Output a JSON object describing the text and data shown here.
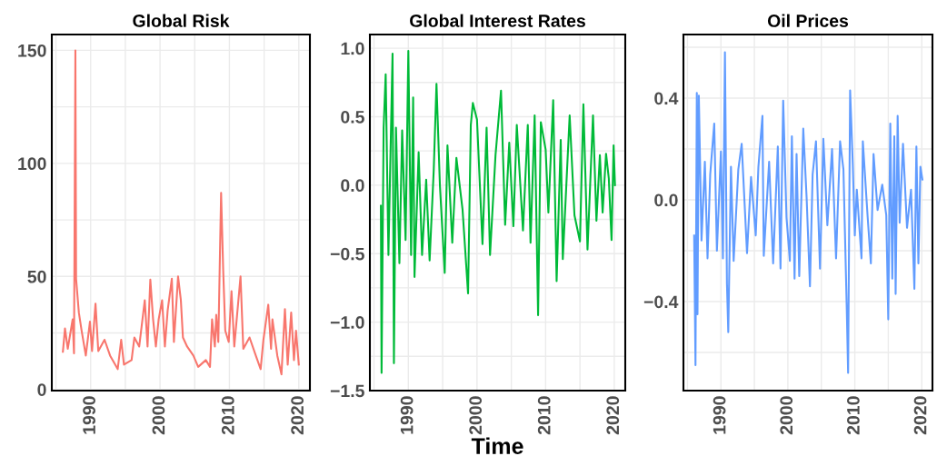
{
  "chart_data": [
    {
      "type": "line",
      "title": "Global Risk",
      "xlim": [
        1984.4,
        2021.6
      ],
      "ylim": [
        -0.5,
        157
      ],
      "xticks": [
        {
          "value": 1985,
          "label": null
        },
        1990,
        {
          "value": 1995,
          "label": null
        },
        2000,
        {
          "value": 2005,
          "label": null
        },
        2010,
        {
          "value": 2015,
          "label": null
        },
        2020
      ],
      "yticks": [
        0,
        {
          "value": 25,
          "label": null
        },
        50,
        {
          "value": 75,
          "label": null
        },
        100,
        {
          "value": 125,
          "label": null
        },
        150
      ],
      "grid": true,
      "series": [
        {
          "color": "#f8766d",
          "x": [
            1986.0,
            1986.3,
            1986.7,
            1987.4,
            1987.6,
            1987.8,
            1987.9,
            1988.3,
            1988.7,
            1989.3,
            1989.9,
            1990.2,
            1990.7,
            1991.1,
            1992.0,
            1992.8,
            1993.9,
            1994.4,
            1994.8,
            1995.9,
            1996.3,
            1997.0,
            1997.8,
            1998.2,
            1998.6,
            1999.0,
            1999.4,
            1999.8,
            2000.3,
            2000.7,
            2001.1,
            2001.7,
            2002.0,
            2002.6,
            2003.0,
            2003.3,
            2003.9,
            2004.8,
            2005.5,
            2006.6,
            2007.2,
            2007.5,
            2007.9,
            2008.1,
            2008.4,
            2008.8,
            2009.1,
            2009.4,
            2009.9,
            2010.3,
            2010.7,
            2011.6,
            2012.0,
            2012.9,
            2013.8,
            2014.5,
            2014.9,
            2015.6,
            2016.0,
            2016.2,
            2016.9,
            2017.5,
            2018.0,
            2018.4,
            2018.9,
            2019.3,
            2019.6,
            2020.0
          ],
          "values": [
            16.7,
            27,
            18,
            31,
            16,
            150,
            49,
            34,
            26,
            15,
            30,
            17,
            38,
            17,
            22,
            15,
            9,
            22,
            11,
            13,
            23,
            19,
            39.5,
            19,
            48.6,
            31,
            19,
            31,
            39.5,
            19,
            35,
            49,
            21,
            50,
            39.5,
            23,
            19,
            15,
            10,
            13,
            10,
            31,
            19,
            33,
            21,
            87,
            53,
            26,
            21,
            43.5,
            19,
            50,
            18,
            23,
            15,
            9,
            22,
            37.5,
            18,
            31,
            15,
            6.7,
            35.5,
            11,
            34,
            13,
            26,
            11
          ]
        }
      ]
    },
    {
      "type": "line",
      "title": "Global Interest Rates",
      "xlabel": "Time",
      "xlim": [
        1984.4,
        2021.6
      ],
      "ylim": [
        -1.5,
        1.1
      ],
      "xticks": [
        {
          "value": 1985,
          "label": null
        },
        1990,
        {
          "value": 1995,
          "label": null
        },
        2000,
        {
          "value": 2005,
          "label": null
        },
        2010,
        {
          "value": 2015,
          "label": null
        },
        2020
      ],
      "yticks": [
        {
          "value": -1.5,
          "label": "−1.5"
        },
        {
          "value": -1.25,
          "label": null
        },
        {
          "value": -1.0,
          "label": "−1.0"
        },
        {
          "value": -0.75,
          "label": null
        },
        {
          "value": -0.5,
          "label": "−0.5"
        },
        {
          "value": -0.25,
          "label": null
        },
        {
          "value": 0,
          "label": "0.0"
        },
        {
          "value": 0.25,
          "label": null
        },
        {
          "value": 0.5,
          "label": "0.5"
        },
        {
          "value": 0.75,
          "label": null
        },
        {
          "value": 1.0,
          "label": "1.0"
        }
      ],
      "grid": true,
      "series": [
        {
          "color": "#00ba38",
          "x": [
            1986.0,
            1986.1,
            1986.4,
            1986.7,
            1987.1,
            1987.7,
            1987.9,
            1988.2,
            1988.7,
            1989.1,
            1989.6,
            1990.0,
            1990.4,
            1990.7,
            1990.9,
            1991.5,
            1992.0,
            1992.6,
            1993.1,
            1993.7,
            1994.1,
            1994.6,
            1995.3,
            1995.7,
            1996.4,
            1997.0,
            1997.9,
            1998.7,
            1999.1,
            1999.4,
            2000.0,
            2000.8,
            2001.4,
            2001.9,
            2002.7,
            2003.5,
            2004.1,
            2004.7,
            2005.3,
            2005.8,
            2006.7,
            2007.4,
            2007.8,
            2008.4,
            2008.9,
            2009.3,
            2010.0,
            2010.4,
            2011.1,
            2011.6,
            2012.2,
            2012.5,
            2013.5,
            2014.2,
            2015.0,
            2015.5,
            2016.1,
            2016.9,
            2017.4,
            2017.9,
            2018.3,
            2018.8,
            2019.2,
            2019.6,
            2019.9,
            2020.1
          ],
          "values": [
            -0.15,
            -1.37,
            0.42,
            0.81,
            -0.51,
            0.96,
            -1.3,
            0.42,
            -0.57,
            0.4,
            -0.4,
            0.98,
            -0.51,
            0.64,
            -0.67,
            0.24,
            -0.51,
            0.04,
            -0.55,
            0.11,
            0.74,
            0.0,
            -0.64,
            0.29,
            -0.42,
            0.2,
            -0.18,
            -0.79,
            0.44,
            0.6,
            0.48,
            -0.43,
            0.42,
            -0.51,
            0.22,
            0.69,
            -0.29,
            0.31,
            -0.3,
            0.44,
            -0.33,
            0.44,
            -0.42,
            0.51,
            -0.95,
            0.46,
            0.26,
            -0.2,
            0.62,
            -0.7,
            0.33,
            -0.54,
            0.51,
            -0.22,
            -0.41,
            0.59,
            -0.47,
            0.51,
            -0.26,
            0.22,
            -0.2,
            0.23,
            0.05,
            -0.4,
            0.29,
            0.0
          ]
        }
      ]
    },
    {
      "type": "line",
      "title": "Oil Prices",
      "xlim": [
        1984.4,
        2021.6
      ],
      "ylim": [
        -0.75,
        0.65
      ],
      "xticks": [
        {
          "value": 1985,
          "label": null
        },
        1990,
        {
          "value": 1995,
          "label": null
        },
        2000,
        {
          "value": 2005,
          "label": null
        },
        2010,
        {
          "value": 2015,
          "label": null
        },
        2020
      ],
      "yticks": [
        {
          "value": -0.6,
          "label": null
        },
        {
          "value": -0.4,
          "label": "−0.4"
        },
        {
          "value": -0.2,
          "label": null
        },
        {
          "value": 0,
          "label": "0.0"
        },
        {
          "value": 0.2,
          "label": null
        },
        {
          "value": 0.4,
          "label": "0.4"
        },
        {
          "value": 0.6,
          "label": null
        }
      ],
      "grid": true,
      "series": [
        {
          "color": "#619cff",
          "x": [
            1986.0,
            1986.2,
            1986.4,
            1986.5,
            1986.7,
            1987.1,
            1987.6,
            1988.0,
            1988.4,
            1989.0,
            1989.4,
            1990.0,
            1990.3,
            1990.6,
            1990.9,
            1991.1,
            1991.5,
            1991.9,
            1992.6,
            1993.1,
            1993.9,
            1994.5,
            1995.2,
            1995.6,
            1996.2,
            1996.4,
            1997.2,
            1997.8,
            1998.5,
            1998.9,
            1999.3,
            1999.8,
            2000.3,
            2000.6,
            2001.0,
            2001.3,
            2001.7,
            2002.3,
            2002.8,
            2003.3,
            2003.7,
            2004.2,
            2004.8,
            2005.3,
            2005.9,
            2006.6,
            2007.2,
            2007.8,
            2008.3,
            2008.8,
            2009.0,
            2009.3,
            2009.7,
            2010.0,
            2010.3,
            2011.0,
            2011.2,
            2011.9,
            2012.4,
            2012.8,
            2013.4,
            2014.1,
            2014.7,
            2015.0,
            2015.3,
            2015.6,
            2015.9,
            2016.1,
            2016.4,
            2016.7,
            2017.2,
            2017.8,
            2018.4,
            2018.9,
            2019.2,
            2019.5,
            2019.8,
            2020.1
          ],
          "values": [
            -0.14,
            -0.65,
            0.42,
            -0.45,
            0.41,
            -0.16,
            0.15,
            -0.23,
            0.1,
            0.3,
            -0.2,
            0.19,
            -0.23,
            0.58,
            -0.33,
            -0.52,
            0.13,
            -0.24,
            0.12,
            0.22,
            -0.21,
            0.09,
            -0.14,
            0.13,
            0.33,
            -0.22,
            0.15,
            -0.25,
            0.21,
            -0.27,
            0.39,
            -0.07,
            -0.24,
            0.25,
            -0.31,
            0.18,
            -0.3,
            0.28,
            0.01,
            -0.34,
            0.1,
            0.23,
            -0.27,
            0.24,
            -0.1,
            0.2,
            -0.23,
            0.23,
            0.12,
            -0.43,
            -0.68,
            0.43,
            0.14,
            -0.14,
            0.04,
            -0.23,
            0.23,
            -0.06,
            -0.25,
            0.18,
            -0.04,
            0.06,
            -0.06,
            -0.47,
            0.3,
            -0.31,
            0.25,
            -0.37,
            0.33,
            -0.09,
            0.22,
            -0.11,
            0.04,
            -0.35,
            0.21,
            -0.25,
            0.13,
            0.08
          ]
        }
      ]
    }
  ]
}
